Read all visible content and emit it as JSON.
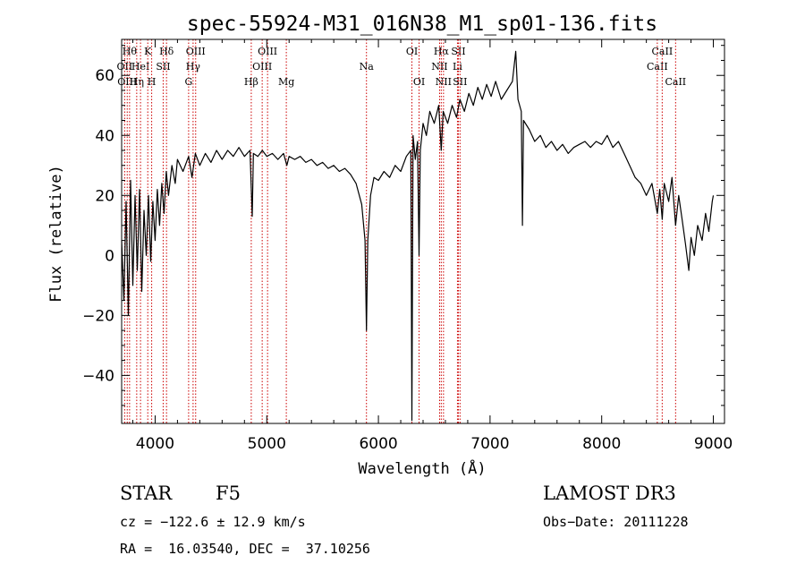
{
  "chart_data": {
    "type": "line",
    "title": "spec-55924-M31_016N38_M1_sp01-136.fits",
    "xlabel": "Wavelength (Å)",
    "ylabel": "Flux (relative)",
    "xlim": [
      3700,
      9100
    ],
    "ylim": [
      -56,
      72
    ],
    "xticks": [
      4000,
      5000,
      6000,
      7000,
      8000,
      9000
    ],
    "yticks": [
      -40,
      -20,
      0,
      20,
      40,
      60
    ],
    "series": [
      {
        "name": "spectrum",
        "points": [
          [
            3700,
            5
          ],
          [
            3720,
            -15
          ],
          [
            3740,
            18
          ],
          [
            3760,
            -20
          ],
          [
            3780,
            25
          ],
          [
            3800,
            -10
          ],
          [
            3820,
            20
          ],
          [
            3840,
            -5
          ],
          [
            3860,
            22
          ],
          [
            3880,
            -12
          ],
          [
            3900,
            15
          ],
          [
            3920,
            0
          ],
          [
            3940,
            20
          ],
          [
            3960,
            -2
          ],
          [
            3980,
            18
          ],
          [
            4000,
            5
          ],
          [
            4020,
            22
          ],
          [
            4040,
            10
          ],
          [
            4060,
            24
          ],
          [
            4080,
            14
          ],
          [
            4100,
            28
          ],
          [
            4120,
            20
          ],
          [
            4150,
            30
          ],
          [
            4180,
            24
          ],
          [
            4200,
            32
          ],
          [
            4250,
            28
          ],
          [
            4300,
            33
          ],
          [
            4330,
            26
          ],
          [
            4360,
            34
          ],
          [
            4400,
            30
          ],
          [
            4450,
            34
          ],
          [
            4500,
            31
          ],
          [
            4550,
            35
          ],
          [
            4600,
            32
          ],
          [
            4650,
            35
          ],
          [
            4700,
            33
          ],
          [
            4750,
            36
          ],
          [
            4800,
            33
          ],
          [
            4850,
            35
          ],
          [
            4870,
            13
          ],
          [
            4880,
            34
          ],
          [
            4920,
            33
          ],
          [
            4960,
            35
          ],
          [
            5000,
            33
          ],
          [
            5050,
            34
          ],
          [
            5100,
            32
          ],
          [
            5150,
            34
          ],
          [
            5180,
            30
          ],
          [
            5200,
            33
          ],
          [
            5250,
            32
          ],
          [
            5300,
            33
          ],
          [
            5350,
            31
          ],
          [
            5400,
            32
          ],
          [
            5450,
            30
          ],
          [
            5500,
            31
          ],
          [
            5550,
            29
          ],
          [
            5600,
            30
          ],
          [
            5650,
            28
          ],
          [
            5700,
            29
          ],
          [
            5750,
            27
          ],
          [
            5800,
            24
          ],
          [
            5850,
            17
          ],
          [
            5880,
            5
          ],
          [
            5893,
            -25
          ],
          [
            5905,
            5
          ],
          [
            5930,
            20
          ],
          [
            5960,
            26
          ],
          [
            6000,
            25
          ],
          [
            6050,
            28
          ],
          [
            6100,
            26
          ],
          [
            6150,
            30
          ],
          [
            6200,
            28
          ],
          [
            6250,
            33
          ],
          [
            6290,
            35
          ],
          [
            6300,
            -55
          ],
          [
            6310,
            40
          ],
          [
            6330,
            32
          ],
          [
            6350,
            38
          ],
          [
            6364,
            0
          ],
          [
            6375,
            35
          ],
          [
            6400,
            44
          ],
          [
            6430,
            40
          ],
          [
            6460,
            48
          ],
          [
            6500,
            44
          ],
          [
            6540,
            50
          ],
          [
            6563,
            35
          ],
          [
            6580,
            48
          ],
          [
            6620,
            44
          ],
          [
            6660,
            50
          ],
          [
            6700,
            46
          ],
          [
            6730,
            52
          ],
          [
            6770,
            48
          ],
          [
            6810,
            54
          ],
          [
            6850,
            50
          ],
          [
            6890,
            56
          ],
          [
            6930,
            52
          ],
          [
            6970,
            57
          ],
          [
            7010,
            53
          ],
          [
            7050,
            58
          ],
          [
            7100,
            52
          ],
          [
            7150,
            55
          ],
          [
            7200,
            58
          ],
          [
            7230,
            68
          ],
          [
            7250,
            52
          ],
          [
            7280,
            48
          ],
          [
            7290,
            10
          ],
          [
            7300,
            45
          ],
          [
            7350,
            42
          ],
          [
            7400,
            38
          ],
          [
            7450,
            40
          ],
          [
            7500,
            36
          ],
          [
            7550,
            38
          ],
          [
            7600,
            35
          ],
          [
            7650,
            37
          ],
          [
            7700,
            34
          ],
          [
            7750,
            36
          ],
          [
            7800,
            37
          ],
          [
            7850,
            38
          ],
          [
            7900,
            36
          ],
          [
            7950,
            38
          ],
          [
            8000,
            37
          ],
          [
            8050,
            40
          ],
          [
            8100,
            36
          ],
          [
            8150,
            38
          ],
          [
            8200,
            34
          ],
          [
            8250,
            30
          ],
          [
            8300,
            26
          ],
          [
            8350,
            24
          ],
          [
            8400,
            20
          ],
          [
            8450,
            24
          ],
          [
            8498,
            14
          ],
          [
            8520,
            22
          ],
          [
            8542,
            12
          ],
          [
            8560,
            24
          ],
          [
            8600,
            18
          ],
          [
            8630,
            26
          ],
          [
            8662,
            10
          ],
          [
            8690,
            20
          ],
          [
            8720,
            12
          ],
          [
            8750,
            4
          ],
          [
            8780,
            -5
          ],
          [
            8800,
            6
          ],
          [
            8830,
            0
          ],
          [
            8860,
            10
          ],
          [
            8900,
            5
          ],
          [
            8930,
            14
          ],
          [
            8960,
            8
          ],
          [
            8990,
            18
          ],
          [
            9000,
            20
          ]
        ]
      }
    ],
    "lines": [
      {
        "wl": 3727,
        "label": "OII",
        "row": 1
      },
      {
        "wl": 3750,
        "label": "OIII",
        "row": 2
      },
      {
        "wl": 3771,
        "label": "Hθ",
        "row": 0
      },
      {
        "wl": 3835,
        "label": "Hη",
        "row": 2
      },
      {
        "wl": 3869,
        "label": "HeI",
        "row": 1
      },
      {
        "wl": 3934,
        "label": "K",
        "row": 0
      },
      {
        "wl": 3969,
        "label": "H",
        "row": 2
      },
      {
        "wl": 4072,
        "label": "SII",
        "row": 1
      },
      {
        "wl": 4102,
        "label": "Hδ",
        "row": 0
      },
      {
        "wl": 4300,
        "label": "G",
        "row": 2
      },
      {
        "wl": 4340,
        "label": "Hγ",
        "row": 1
      },
      {
        "wl": 4363,
        "label": "OIII",
        "row": 0
      },
      {
        "wl": 4861,
        "label": "Hβ",
        "row": 2
      },
      {
        "wl": 4959,
        "label": "OIII",
        "row": 1
      },
      {
        "wl": 5007,
        "label": "OIII",
        "row": 0
      },
      {
        "wl": 5175,
        "label": "Mg",
        "row": 2
      },
      {
        "wl": 5893,
        "label": "Na",
        "row": 1
      },
      {
        "wl": 6300,
        "label": "OI",
        "row": 0
      },
      {
        "wl": 6364,
        "label": "OI",
        "row": 2
      },
      {
        "wl": 6548,
        "label": "NII",
        "row": 1
      },
      {
        "wl": 6563,
        "label": "Hα",
        "row": 0
      },
      {
        "wl": 6583,
        "label": "NII",
        "row": 2
      },
      {
        "wl": 6708,
        "label": "Li",
        "row": 1
      },
      {
        "wl": 6716,
        "label": "SII",
        "row": 0
      },
      {
        "wl": 6731,
        "label": "SII",
        "row": 2
      },
      {
        "wl": 8498,
        "label": "CaII",
        "row": 1
      },
      {
        "wl": 8542,
        "label": "CaII",
        "row": 0
      },
      {
        "wl": 8662,
        "label": "CaII",
        "row": 2
      }
    ]
  },
  "footer": {
    "class": "STAR",
    "subclass": "F5",
    "survey": "LAMOST DR3",
    "cz": "cz = −122.6 ± 12.9 km/s",
    "obs_date": "Obs−Date: 20111228",
    "coords": "RA =  16.03540, DEC =  37.10256"
  }
}
